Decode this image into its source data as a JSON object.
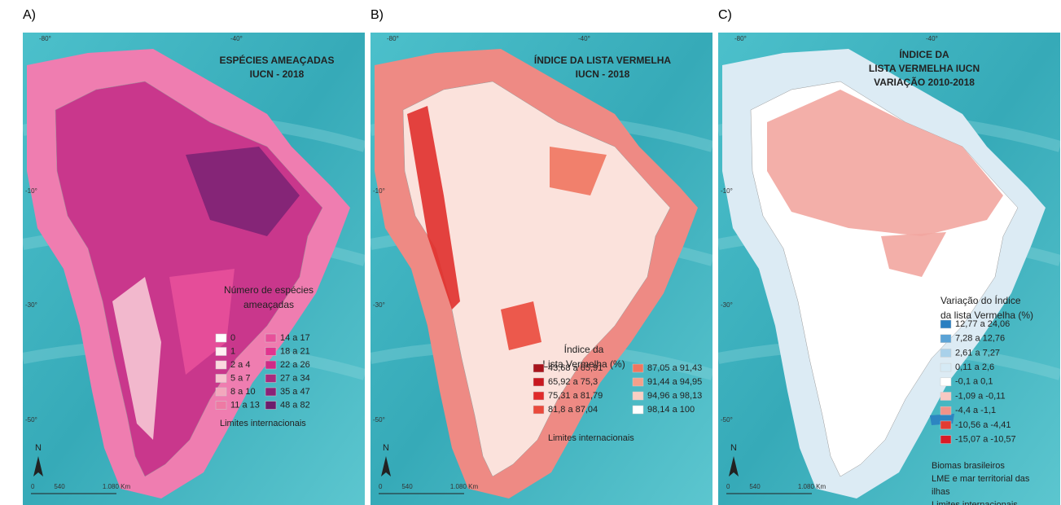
{
  "panels": [
    {
      "label": "A)",
      "title": [
        "ESPÉCIES AMEAÇADAS",
        "IUCN - 2018"
      ],
      "graticule": {
        "top": [
          "-80°",
          "-40°"
        ],
        "left": [
          "-10°",
          "-30°",
          "-50°"
        ]
      },
      "legend": {
        "title": [
          "Número de espécies",
          "ameaçadas"
        ],
        "columns": 2,
        "items": [
          {
            "label": "0",
            "color": "#ffffff"
          },
          {
            "label": "1",
            "color": "#fff0f3"
          },
          {
            "label": "2 a 4",
            "color": "#fbd9df"
          },
          {
            "label": "5 a 7",
            "color": "#f7c3cf"
          },
          {
            "label": "8 a 10",
            "color": "#f3a7bd"
          },
          {
            "label": "11 a 13",
            "color": "#ee7aa4"
          },
          {
            "label": "14 a 17",
            "color": "#e8509a"
          },
          {
            "label": "18 a 21",
            "color": "#e2338f"
          },
          {
            "label": "22 a 26",
            "color": "#cf2a87"
          },
          {
            "label": "27 a 34",
            "color": "#a82a7e"
          },
          {
            "label": "35 a 47",
            "color": "#8b2377"
          },
          {
            "label": "48 a 82",
            "color": "#6d1d6c"
          }
        ]
      },
      "notes": [
        "Limites internacionais"
      ],
      "north": "N",
      "scale": [
        "0",
        "540",
        "1.080 Km"
      ]
    },
    {
      "label": "B)",
      "title": [
        "ÍNDICE DA LISTA VERMELHA",
        "IUCN - 2018"
      ],
      "graticule": {
        "top": [
          "-80°",
          "-40°"
        ],
        "left": [
          "-10°",
          "-30°",
          "-50°"
        ]
      },
      "legend": {
        "title": [
          "Índice da",
          "Lista Vermelha (%)"
        ],
        "columns": 2,
        "items": [
          {
            "label": "43,68 a 65,91",
            "color": "#a8141c"
          },
          {
            "label": "65,92 a 75,3",
            "color": "#c8171f"
          },
          {
            "label": "75,31 a 81,79",
            "color": "#e02a2a"
          },
          {
            "label": "81,8 a 87,04",
            "color": "#ea4a3c"
          },
          {
            "label": "87,05 a 91,43",
            "color": "#f0765f"
          },
          {
            "label": "91,44 a 94,95",
            "color": "#f5a08a"
          },
          {
            "label": "94,96 a 98,13",
            "color": "#f9cfc3"
          },
          {
            "label": "98,14 a 100",
            "color": "#ffffff"
          }
        ]
      },
      "notes": [
        "Limites internacionais"
      ],
      "north": "N",
      "scale": [
        "0",
        "540",
        "1.080 Km"
      ]
    },
    {
      "label": "C)",
      "title": [
        "ÍNDICE DA",
        "LISTA VERMELHA IUCN",
        "VARIAÇÃO 2010-2018"
      ],
      "graticule": {
        "top": [
          "-80°",
          "-40°"
        ],
        "left": [
          "-10°",
          "-30°",
          "-50°"
        ]
      },
      "legend": {
        "title": [
          "Variação do Índice",
          "da lista Vermelha (%)"
        ],
        "columns": 1,
        "items": [
          {
            "label": "12,77 a 24,06",
            "color": "#2a7fc1"
          },
          {
            "label": "7,28 a 12,76",
            "color": "#5ba3d6"
          },
          {
            "label": "2,61 a 7,27",
            "color": "#a9d1ea"
          },
          {
            "label": "0,11 a 2,6",
            "color": "#d6eaf5"
          },
          {
            "label": "-0,1 a 0,1",
            "color": "#ffffff"
          },
          {
            "label": "-1,09 a -0,11",
            "color": "#f8c9c3"
          },
          {
            "label": "-4,4 a -1,1",
            "color": "#f0938a"
          },
          {
            "label": "-10,56 a -4,41",
            "color": "#e33b32"
          },
          {
            "label": "-15,07 a -10,57",
            "color": "#d91c26"
          }
        ]
      },
      "notes": [
        "Biomas brasileiros",
        "LME e mar territorial das",
        "ilhas",
        "Limites internacionais"
      ],
      "north": "N",
      "scale": [
        "0",
        "540",
        "1.080 Km"
      ]
    }
  ]
}
